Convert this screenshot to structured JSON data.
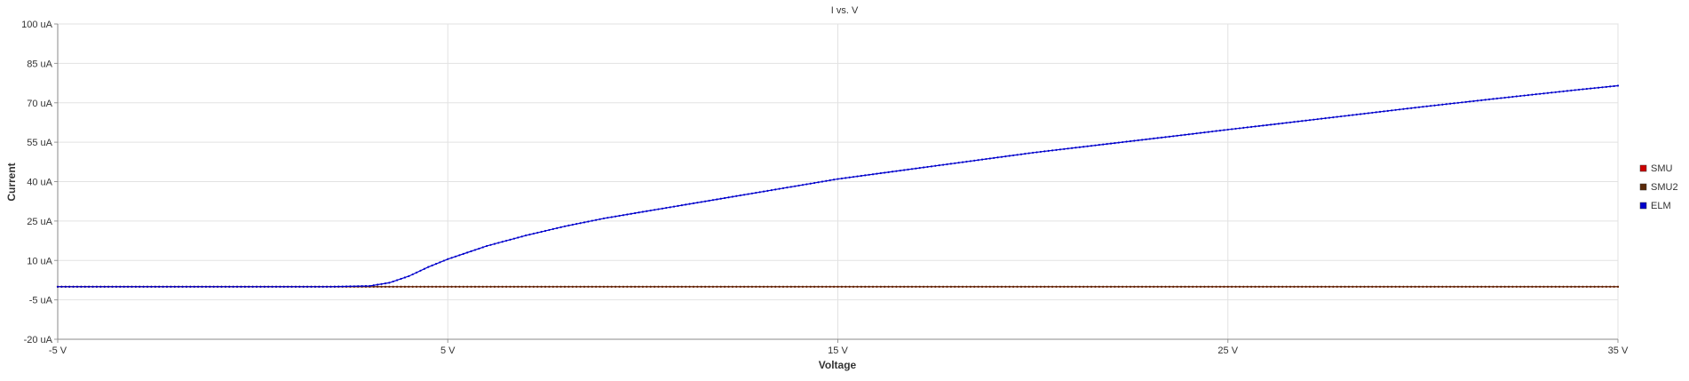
{
  "chart_data": {
    "type": "line",
    "title": "I vs. V",
    "xlabel": "Voltage",
    "ylabel": "Current",
    "xlim": [
      -5,
      35
    ],
    "ylim": [
      -20,
      100
    ],
    "x_ticks": [
      -5,
      5,
      15,
      25,
      35
    ],
    "x_tick_labels": [
      "-5 V",
      "5 V",
      "15 V",
      "25 V",
      "35 V"
    ],
    "y_ticks": [
      -20,
      -5,
      10,
      25,
      40,
      55,
      70,
      85,
      100
    ],
    "y_tick_labels": [
      "-20 uA",
      "-5 uA",
      "10 uA",
      "25 uA",
      "40 uA",
      "55 uA",
      "70 uA",
      "85 uA",
      "100 uA"
    ],
    "grid": true,
    "legend_position": "right",
    "series": [
      {
        "name": "SMU",
        "color": "#cc0000",
        "x": [
          -5,
          0,
          3,
          5,
          10,
          15,
          20,
          25,
          30,
          35
        ],
        "y": [
          0,
          0,
          0,
          0,
          0,
          0,
          0,
          0,
          0,
          0
        ]
      },
      {
        "name": "SMU2",
        "color": "#5a2a0a",
        "x": [
          -5,
          0,
          3,
          5,
          10,
          15,
          20,
          25,
          30,
          35
        ],
        "y": [
          0,
          0,
          0,
          0,
          0,
          0,
          0,
          0,
          0,
          0
        ]
      },
      {
        "name": "ELM",
        "color": "#0000cc",
        "x": [
          -5,
          -2,
          0,
          2,
          3,
          3.5,
          4,
          4.5,
          5,
          5.5,
          6,
          7,
          8,
          9,
          10,
          12,
          14,
          15,
          16,
          18,
          20,
          22,
          24,
          25,
          26,
          28,
          30,
          32,
          34,
          35
        ],
        "y": [
          0,
          0,
          0,
          0,
          0.3,
          1.5,
          4,
          7.5,
          10.5,
          13,
          15.5,
          19.5,
          23,
          26,
          28.5,
          33.5,
          38.5,
          41,
          43,
          47,
          51,
          54.5,
          58,
          59.8,
          61.5,
          65,
          68.5,
          71.8,
          75,
          76.5
        ]
      }
    ]
  }
}
